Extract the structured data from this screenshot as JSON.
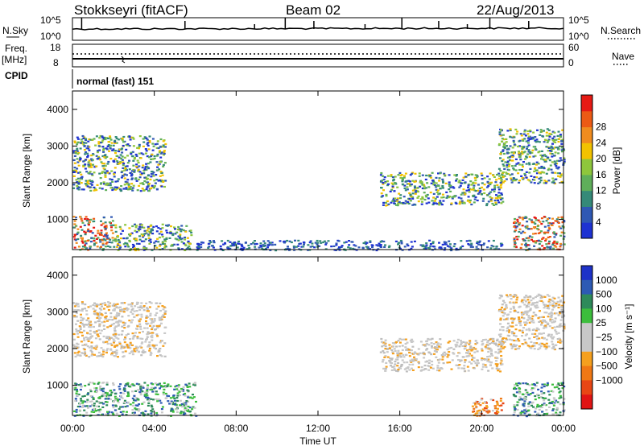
{
  "header": {
    "station": "Stokkseyri (fitACF)",
    "beam": "Beam 02",
    "date": "22/Aug/2013"
  },
  "noise_panel": {
    "left_label": "N.Sky",
    "right_label": "N.Search",
    "left_ticks": [
      "10^5",
      "10^0"
    ],
    "right_ticks": [
      "10^5",
      "10^0"
    ],
    "right_line_style": "dotted"
  },
  "freq_panel": {
    "left_label_line1": "Freq.",
    "left_label_line2": "[MHz]",
    "right_label": "Nave",
    "left_ticks": [
      "18",
      "8"
    ],
    "right_ticks": [
      "60",
      "0"
    ],
    "right_line_style": "dotted"
  },
  "cpid_panel": {
    "label": "CPID",
    "value": "normal (fast) 151"
  },
  "x_axis": {
    "label": "Time UT",
    "ticks": [
      "00:00",
      "04:00",
      "08:00",
      "12:00",
      "16:00",
      "20:00",
      "00:00"
    ]
  },
  "chart_data": [
    {
      "type": "heatmap",
      "quantity": "power",
      "x_range_hours": [
        0,
        24
      ],
      "ylabel": "Slant Range [km]",
      "ylim": [
        180,
        4500
      ],
      "yticks": [
        1000,
        2000,
        3000,
        4000
      ],
      "colorbar": {
        "label": "Power [dB]",
        "tick_labels": [
          "4",
          "8",
          "12",
          "16",
          "20",
          "24",
          "28"
        ],
        "colors": [
          "#1e32d2",
          "#2f58b4",
          "#358a78",
          "#5fae5a",
          "#8ec63c",
          "#f2c200",
          "#f08c1e",
          "#ec5a14",
          "#e61a14"
        ]
      },
      "regions": [
        {
          "t": [
            0.0,
            2.0
          ],
          "r": [
            180,
            1100
          ],
          "level": "high"
        },
        {
          "t": [
            2.0,
            5.8
          ],
          "r": [
            180,
            900
          ],
          "level": "mid"
        },
        {
          "t": [
            0.0,
            4.5
          ],
          "r": [
            1800,
            3300
          ],
          "level": "mid"
        },
        {
          "t": [
            15.0,
            21.0
          ],
          "r": [
            1400,
            2300
          ],
          "level": "mid"
        },
        {
          "t": [
            20.8,
            24.0
          ],
          "r": [
            2000,
            3500
          ],
          "level": "mid"
        },
        {
          "t": [
            21.5,
            24.0
          ],
          "r": [
            180,
            1100
          ],
          "level": "high"
        },
        {
          "t": [
            6.0,
            21.0
          ],
          "r": [
            180,
            450
          ],
          "level": "low"
        }
      ]
    },
    {
      "type": "heatmap",
      "quantity": "velocity",
      "x_range_hours": [
        0,
        24
      ],
      "ylabel": "Slant Range [km]",
      "ylim": [
        180,
        4500
      ],
      "yticks": [
        1000,
        2000,
        3000,
        4000
      ],
      "colorbar": {
        "label": "Velocity [m s⁻¹]",
        "tick_labels": [
          "1000",
          "500",
          "100",
          "25",
          "−25",
          "−100",
          "−500",
          "−1000"
        ],
        "colors": [
          "#1e32c8",
          "#2d5ab4",
          "#2e8a5a",
          "#3cbe3c",
          "#c8c8c8",
          "#c8c8c8",
          "#f5a01e",
          "#f07814",
          "#e84614",
          "#e11414"
        ]
      },
      "regions": [
        {
          "t": [
            0.0,
            6.0
          ],
          "r": [
            180,
            1100
          ],
          "level": "positive"
        },
        {
          "t": [
            0.0,
            4.5
          ],
          "r": [
            1800,
            3300
          ],
          "level": "zero"
        },
        {
          "t": [
            15.0,
            21.0
          ],
          "r": [
            1400,
            2300
          ],
          "level": "zero"
        },
        {
          "t": [
            20.8,
            24.0
          ],
          "r": [
            2000,
            3500
          ],
          "level": "zero"
        },
        {
          "t": [
            21.5,
            24.0
          ],
          "r": [
            180,
            1100
          ],
          "level": "positive"
        },
        {
          "t": [
            19.5,
            21.0
          ],
          "r": [
            180,
            700
          ],
          "level": "negative"
        }
      ]
    }
  ]
}
